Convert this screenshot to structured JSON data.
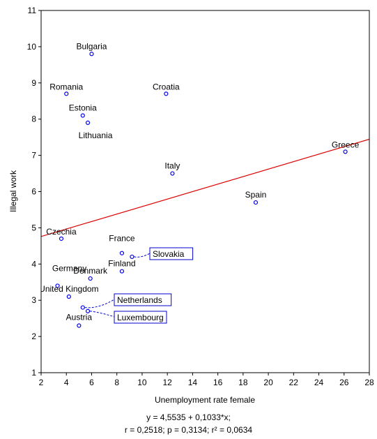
{
  "chart_data": {
    "type": "scatter",
    "title": "",
    "xlabel": "Unemployment rate female",
    "ylabel": "Illegal work",
    "xlim": [
      2,
      28
    ],
    "ylim": [
      1,
      11
    ],
    "xticks": [
      2,
      4,
      6,
      8,
      10,
      12,
      14,
      16,
      18,
      20,
      22,
      24,
      26,
      28
    ],
    "yticks": [
      1,
      2,
      3,
      4,
      5,
      6,
      7,
      8,
      9,
      10,
      11
    ],
    "grid": false,
    "colors": {
      "points": "#0000ee",
      "fit": "#dd0000",
      "axes": "#000000",
      "boxed": "#0000cc"
    },
    "points": [
      {
        "label": "Bulgaria",
        "x": 6.0,
        "y": 9.8
      },
      {
        "label": "Romania",
        "x": 4.0,
        "y": 8.7
      },
      {
        "label": "Croatia",
        "x": 11.9,
        "y": 8.7
      },
      {
        "label": "Estonia",
        "x": 5.3,
        "y": 8.1
      },
      {
        "label": "Lithuania",
        "x": 5.7,
        "y": 7.9
      },
      {
        "label": "Greece",
        "x": 26.1,
        "y": 7.1
      },
      {
        "label": "Italy",
        "x": 12.4,
        "y": 6.5
      },
      {
        "label": "Spain",
        "x": 19.0,
        "y": 5.7
      },
      {
        "label": "Czechia",
        "x": 3.6,
        "y": 4.7
      },
      {
        "label": "France",
        "x": 8.4,
        "y": 4.3
      },
      {
        "label": "Slovakia",
        "x": 9.2,
        "y": 4.2,
        "boxed": true
      },
      {
        "label": "Finland",
        "x": 8.4,
        "y": 3.8
      },
      {
        "label": "Denmark",
        "x": 5.9,
        "y": 3.6
      },
      {
        "label": "Germany",
        "x": 3.3,
        "y": 3.4
      },
      {
        "label": "United Kingdom",
        "x": 4.2,
        "y": 3.1
      },
      {
        "label": "Netherlands",
        "x": 5.3,
        "y": 2.8,
        "boxed": true
      },
      {
        "label": "Luxembourg",
        "x": 5.7,
        "y": 2.7,
        "boxed": true
      },
      {
        "label": "Austria",
        "x": 5.0,
        "y": 2.3
      }
    ],
    "fit": {
      "intercept": 4.5535,
      "slope": 0.1033
    },
    "annotation_lines": [
      "y = 4,5535 + 0,1033*x;",
      "r = 0,2518; p = 0,3134; r² = 0,0634"
    ]
  }
}
